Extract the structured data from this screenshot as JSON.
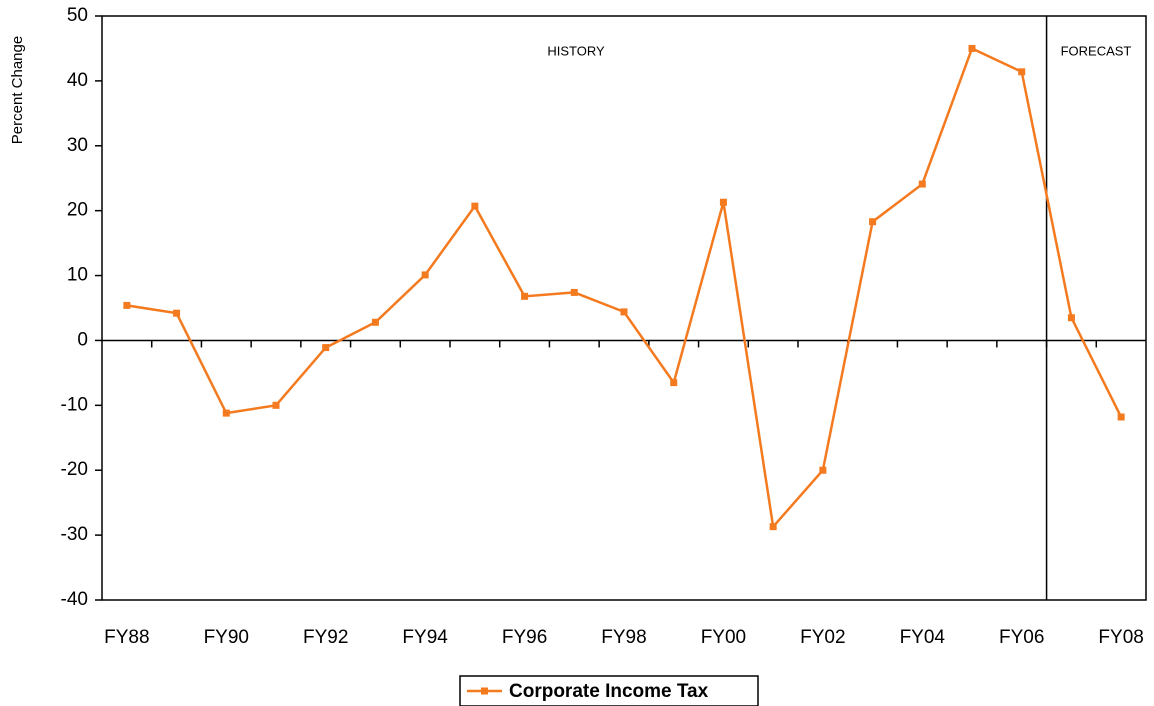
{
  "chart_data": {
    "type": "line",
    "y_label": "Percent Change",
    "annotations": [
      "HISTORY",
      "FORECAST"
    ],
    "categories": [
      "FY88",
      null,
      "FY90",
      null,
      "FY92",
      null,
      "FY94",
      null,
      "FY96",
      null,
      "FY98",
      null,
      "FY00",
      null,
      "FY02",
      null,
      "FY04",
      null,
      "FY06",
      null,
      "FY08"
    ],
    "series": [
      {
        "name": "Corporate Income Tax",
        "color": "#f47a1f",
        "values": [
          5.4,
          4.2,
          -11.2,
          -10.0,
          -1.1,
          2.8,
          10.1,
          20.7,
          6.8,
          7.4,
          4.4,
          -6.5,
          21.3,
          -28.7,
          -20.0,
          18.3,
          24.1,
          45.0,
          41.4,
          3.5,
          -11.8
        ]
      }
    ],
    "ylim": [
      -40,
      50
    ],
    "yticks": [
      -40,
      -30,
      -20,
      -10,
      0,
      10,
      20,
      30,
      40,
      50
    ],
    "legend": "bottom"
  }
}
